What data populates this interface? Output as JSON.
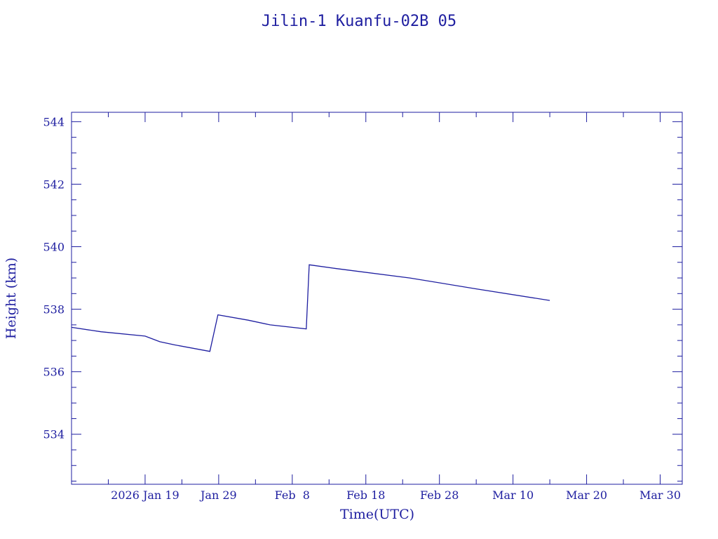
{
  "chart_data": {
    "type": "line",
    "title": "Jilin-1 Kuanfu-02B 05",
    "xlabel": "Time(UTC)",
    "ylabel": "Height (km)",
    "color": "#1e1ea0",
    "grid": false,
    "xlim": [
      "2026-01-09",
      "2026-04-02"
    ],
    "ylim": [
      532.4,
      544.3
    ],
    "x_ticks": [
      {
        "date": "2026-01-19",
        "label": "2026 Jan 19"
      },
      {
        "date": "2026-01-29",
        "label": "Jan 29"
      },
      {
        "date": "2026-02-08",
        "label": "Feb  8"
      },
      {
        "date": "2026-02-18",
        "label": "Feb 18"
      },
      {
        "date": "2026-02-28",
        "label": "Feb 28"
      },
      {
        "date": "2026-03-10",
        "label": "Mar 10"
      },
      {
        "date": "2026-03-20",
        "label": "Mar 20"
      },
      {
        "date": "2026-03-30",
        "label": "Mar 30"
      }
    ],
    "y_ticks": [
      534,
      536,
      538,
      540,
      542,
      544
    ],
    "series": [
      {
        "x": [
          "2026-01-09",
          "2026-01-13",
          "2026-01-19",
          "2026-01-20",
          "2026-01-21",
          "2026-01-23",
          "2026-01-27.8",
          "2026-01-28.9",
          "2026-02-02",
          "2026-02-05",
          "2026-02-09.9",
          "2026-02-10.3",
          "2026-02-14",
          "2026-02-24",
          "2026-03-05",
          "2026-03-15"
        ],
        "y": [
          537.42,
          537.28,
          537.14,
          537.05,
          536.96,
          536.86,
          536.65,
          537.82,
          537.65,
          537.5,
          537.37,
          539.42,
          539.3,
          539.0,
          538.65,
          538.28
        ]
      }
    ]
  }
}
